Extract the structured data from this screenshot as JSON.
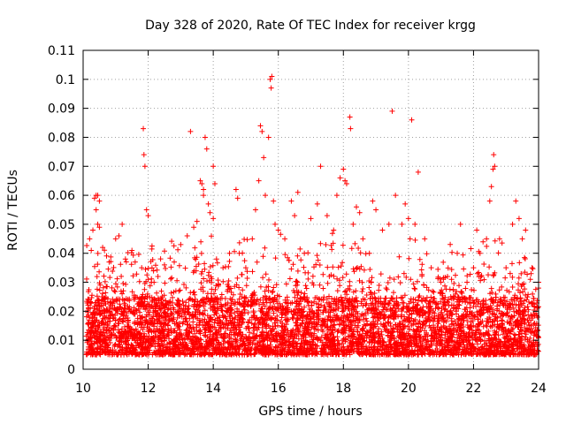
{
  "chart_data": {
    "type": "scatter",
    "title": "Day 328 of 2020, Rate Of TEC Index for receiver krgg",
    "xlabel": "GPS time / hours",
    "ylabel": "ROTI / TECUs",
    "xlim": [
      10,
      24
    ],
    "ylim": [
      0,
      0.11
    ],
    "xticks": [
      "10",
      "12",
      "14",
      "16",
      "18",
      "20",
      "22",
      "24"
    ],
    "yticks": [
      "0",
      "0.01",
      "0.02",
      "0.03",
      "0.04",
      "0.05",
      "0.06",
      "0.07",
      "0.08",
      "0.09",
      "0.1",
      "0.11"
    ],
    "grid": true,
    "marker": "+",
    "color": "#ff0000",
    "series": [
      {
        "points": [
          [
            10.2,
            0.045
          ],
          [
            10.3,
            0.048
          ],
          [
            10.35,
            0.059
          ],
          [
            10.4,
            0.06
          ],
          [
            10.45,
            0.06
          ],
          [
            10.5,
            0.058
          ],
          [
            10.4,
            0.055
          ],
          [
            10.25,
            0.041
          ],
          [
            10.45,
            0.05
          ],
          [
            10.5,
            0.049
          ],
          [
            10.6,
            0.042
          ],
          [
            10.8,
            0.037
          ],
          [
            11.0,
            0.045
          ],
          [
            11.1,
            0.046
          ],
          [
            11.2,
            0.05
          ],
          [
            11.3,
            0.038
          ],
          [
            11.5,
            0.041
          ],
          [
            11.6,
            0.037
          ],
          [
            11.8,
            0.035
          ],
          [
            11.85,
            0.083
          ],
          [
            11.87,
            0.074
          ],
          [
            11.9,
            0.07
          ],
          [
            11.95,
            0.055
          ],
          [
            12.0,
            0.053
          ],
          [
            12.1,
            0.03
          ],
          [
            12.3,
            0.032
          ],
          [
            12.5,
            0.036
          ],
          [
            12.8,
            0.037
          ],
          [
            13.0,
            0.043
          ],
          [
            13.2,
            0.046
          ],
          [
            13.3,
            0.082
          ],
          [
            13.4,
            0.049
          ],
          [
            13.5,
            0.051
          ],
          [
            13.6,
            0.065
          ],
          [
            13.65,
            0.064
          ],
          [
            13.7,
            0.062
          ],
          [
            13.75,
            0.08
          ],
          [
            13.8,
            0.076
          ],
          [
            13.7,
            0.06
          ],
          [
            13.85,
            0.057
          ],
          [
            13.9,
            0.054
          ],
          [
            14.0,
            0.052
          ],
          [
            14.0,
            0.07
          ],
          [
            14.05,
            0.064
          ],
          [
            14.1,
            0.038
          ],
          [
            14.3,
            0.035
          ],
          [
            14.5,
            0.04
          ],
          [
            14.7,
            0.062
          ],
          [
            14.75,
            0.059
          ],
          [
            14.8,
            0.04
          ],
          [
            15.0,
            0.035
          ],
          [
            15.2,
            0.045
          ],
          [
            15.3,
            0.055
          ],
          [
            15.4,
            0.065
          ],
          [
            15.45,
            0.084
          ],
          [
            15.5,
            0.082
          ],
          [
            15.55,
            0.073
          ],
          [
            15.6,
            0.06
          ],
          [
            15.7,
            0.08
          ],
          [
            15.75,
            0.1
          ],
          [
            15.8,
            0.101
          ],
          [
            15.78,
            0.097
          ],
          [
            15.85,
            0.058
          ],
          [
            15.9,
            0.05
          ],
          [
            16.0,
            0.048
          ],
          [
            16.2,
            0.045
          ],
          [
            16.4,
            0.058
          ],
          [
            16.5,
            0.053
          ],
          [
            16.6,
            0.061
          ],
          [
            16.8,
            0.04
          ],
          [
            17.0,
            0.052
          ],
          [
            17.2,
            0.057
          ],
          [
            17.3,
            0.07
          ],
          [
            17.5,
            0.053
          ],
          [
            17.7,
            0.048
          ],
          [
            17.8,
            0.06
          ],
          [
            17.9,
            0.066
          ],
          [
            18.0,
            0.069
          ],
          [
            18.05,
            0.065
          ],
          [
            18.1,
            0.064
          ],
          [
            18.2,
            0.087
          ],
          [
            18.22,
            0.083
          ],
          [
            18.3,
            0.05
          ],
          [
            18.4,
            0.056
          ],
          [
            18.5,
            0.054
          ],
          [
            18.6,
            0.045
          ],
          [
            18.8,
            0.04
          ],
          [
            18.9,
            0.058
          ],
          [
            19.0,
            0.055
          ],
          [
            19.2,
            0.048
          ],
          [
            19.4,
            0.05
          ],
          [
            19.5,
            0.089
          ],
          [
            19.6,
            0.06
          ],
          [
            19.8,
            0.05
          ],
          [
            19.9,
            0.057
          ],
          [
            20.0,
            0.052
          ],
          [
            20.05,
            0.045
          ],
          [
            20.1,
            0.086
          ],
          [
            20.2,
            0.05
          ],
          [
            20.3,
            0.068
          ],
          [
            20.5,
            0.045
          ],
          [
            20.7,
            0.035
          ],
          [
            21.0,
            0.03
          ],
          [
            21.2,
            0.032
          ],
          [
            21.5,
            0.04
          ],
          [
            21.6,
            0.05
          ],
          [
            21.8,
            0.03
          ],
          [
            22.0,
            0.035
          ],
          [
            22.1,
            0.048
          ],
          [
            22.2,
            0.04
          ],
          [
            22.4,
            0.045
          ],
          [
            22.5,
            0.058
          ],
          [
            22.55,
            0.063
          ],
          [
            22.6,
            0.069
          ],
          [
            22.62,
            0.074
          ],
          [
            22.65,
            0.07
          ],
          [
            22.8,
            0.045
          ],
          [
            23.0,
            0.035
          ],
          [
            23.2,
            0.05
          ],
          [
            23.3,
            0.058
          ],
          [
            23.4,
            0.052
          ],
          [
            23.5,
            0.045
          ],
          [
            23.6,
            0.048
          ],
          [
            23.8,
            0.035
          ],
          [
            24.0,
            0.03
          ],
          [
            24.0,
            0.028
          ]
        ]
      }
    ]
  }
}
